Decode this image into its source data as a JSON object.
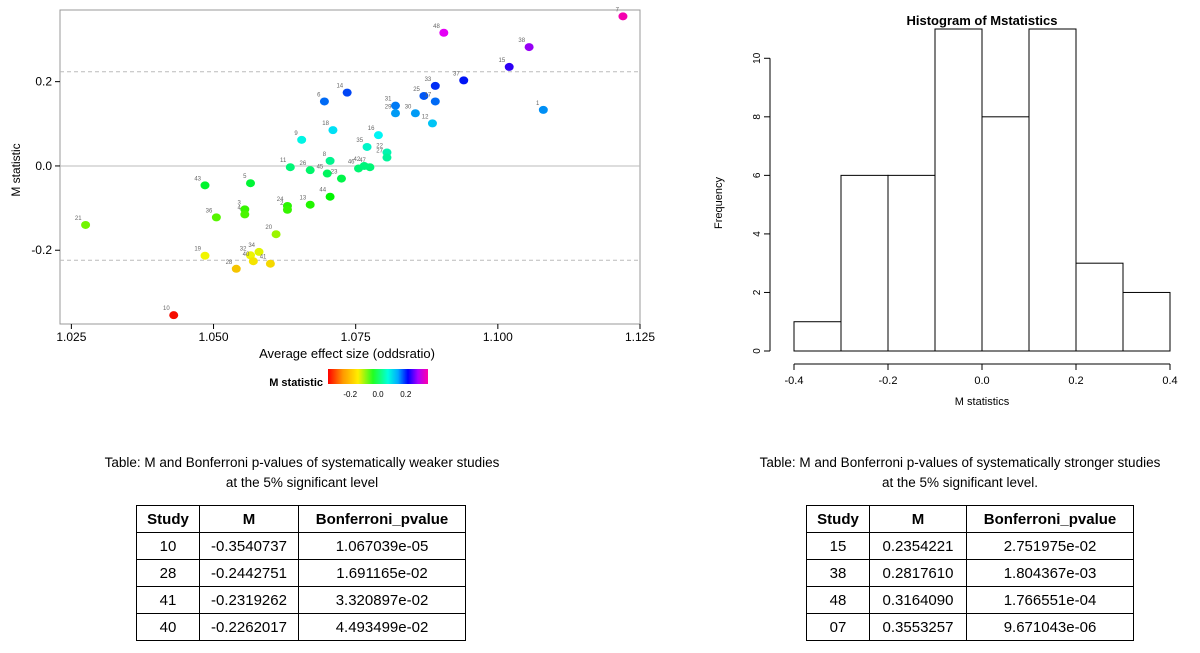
{
  "chart_data": [
    {
      "type": "scatter",
      "xlabel": "Average effect size (oddsratio)",
      "ylabel": "M statistic",
      "xlim": [
        1.023,
        1.125
      ],
      "ylim": [
        -0.375,
        0.37
      ],
      "xticks": [
        "1.025",
        "1.050",
        "1.075",
        "1.100",
        "1.125"
      ],
      "yticks": [
        "-0.2",
        "0.0",
        "0.2"
      ],
      "ytick_values": [
        -0.2,
        0.0,
        0.2
      ],
      "xtick_values": [
        1.025,
        1.05,
        1.075,
        1.1,
        1.125
      ],
      "hlines": [
        {
          "y": 0.0,
          "style": "solid"
        },
        {
          "y": 0.2236,
          "style": "dashed"
        },
        {
          "y": -0.2236,
          "style": "dashed"
        }
      ],
      "colorbar": {
        "title": "M statistic",
        "ticks": [
          "-0.2",
          "0.0",
          "0.2"
        ],
        "tick_values": [
          -0.2,
          0.0,
          0.2
        ],
        "range": [
          -0.36,
          0.36
        ]
      },
      "points": [
        {
          "label": "7",
          "x": 1.122,
          "y": 0.355
        },
        {
          "label": "48",
          "x": 1.0905,
          "y": 0.316
        },
        {
          "label": "38",
          "x": 1.1055,
          "y": 0.282
        },
        {
          "label": "15",
          "x": 1.102,
          "y": 0.235
        },
        {
          "label": "37",
          "x": 1.094,
          "y": 0.203
        },
        {
          "label": "33",
          "x": 1.089,
          "y": 0.19
        },
        {
          "label": "1",
          "x": 1.108,
          "y": 0.133
        },
        {
          "label": "14",
          "x": 1.0735,
          "y": 0.174
        },
        {
          "label": "25",
          "x": 1.087,
          "y": 0.166
        },
        {
          "label": "6",
          "x": 1.0695,
          "y": 0.153
        },
        {
          "label": "31",
          "x": 1.082,
          "y": 0.143
        },
        {
          "label": "29",
          "x": 1.082,
          "y": 0.125
        },
        {
          "label": "30",
          "x": 1.0855,
          "y": 0.125
        },
        {
          "label": "17",
          "x": 1.089,
          "y": 0.153
        },
        {
          "label": "12",
          "x": 1.0885,
          "y": 0.101
        },
        {
          "label": "18",
          "x": 1.071,
          "y": 0.085
        },
        {
          "label": "16",
          "x": 1.079,
          "y": 0.073
        },
        {
          "label": "9",
          "x": 1.0655,
          "y": 0.062
        },
        {
          "label": "35",
          "x": 1.077,
          "y": 0.045
        },
        {
          "label": "22",
          "x": 1.0805,
          "y": 0.032
        },
        {
          "label": "27",
          "x": 1.0805,
          "y": 0.02
        },
        {
          "label": "8",
          "x": 1.0705,
          "y": 0.012
        },
        {
          "label": "11",
          "x": 1.0635,
          "y": -0.003
        },
        {
          "label": "26",
          "x": 1.067,
          "y": -0.01
        },
        {
          "label": "45",
          "x": 1.07,
          "y": -0.018
        },
        {
          "label": "46",
          "x": 1.0755,
          "y": -0.006
        },
        {
          "label": "47",
          "x": 1.0775,
          "y": -0.003
        },
        {
          "label": "42",
          "x": 1.0765,
          "y": 0.0
        },
        {
          "label": "23",
          "x": 1.0725,
          "y": -0.03
        },
        {
          "label": "43",
          "x": 1.0485,
          "y": -0.046
        },
        {
          "label": "5",
          "x": 1.0565,
          "y": -0.041
        },
        {
          "label": "44",
          "x": 1.0705,
          "y": -0.073
        },
        {
          "label": "13",
          "x": 1.067,
          "y": -0.092
        },
        {
          "label": "24",
          "x": 1.063,
          "y": -0.095
        },
        {
          "label": "2",
          "x": 1.063,
          "y": -0.104
        },
        {
          "label": "3",
          "x": 1.0555,
          "y": -0.103
        },
        {
          "label": "4",
          "x": 1.0555,
          "y": -0.115
        },
        {
          "label": "36",
          "x": 1.0505,
          "y": -0.122
        },
        {
          "label": "21",
          "x": 1.0275,
          "y": -0.14
        },
        {
          "label": "20",
          "x": 1.061,
          "y": -0.162
        },
        {
          "label": "19",
          "x": 1.0485,
          "y": -0.213
        },
        {
          "label": "34",
          "x": 1.058,
          "y": -0.204
        },
        {
          "label": "32",
          "x": 1.0565,
          "y": -0.212
        },
        {
          "label": "40",
          "x": 1.057,
          "y": -0.226
        },
        {
          "label": "41",
          "x": 1.06,
          "y": -0.232
        },
        {
          "label": "28",
          "x": 1.054,
          "y": -0.244
        },
        {
          "label": "10",
          "x": 1.043,
          "y": -0.354
        }
      ]
    },
    {
      "type": "histogram",
      "title": "Histogram of Mstatistics",
      "xlabel": "M statistics",
      "ylabel": "Frequency",
      "bins": [
        -0.4,
        -0.3,
        -0.2,
        -0.1,
        0.0,
        0.1,
        0.2,
        0.3,
        0.4
      ],
      "counts": [
        1,
        6,
        6,
        11,
        8,
        11,
        3,
        2
      ],
      "xlim": [
        -0.4,
        0.4
      ],
      "ylim": [
        0,
        11
      ],
      "xticks": [
        "-0.4",
        "-0.2",
        "0.0",
        "0.2",
        "0.4"
      ],
      "xtick_values": [
        -0.4,
        -0.2,
        0.0,
        0.2,
        0.4
      ],
      "yticks": [
        "0",
        "2",
        "4",
        "6",
        "8",
        "10"
      ],
      "ytick_values": [
        0,
        2,
        4,
        6,
        8,
        10
      ]
    }
  ],
  "weaker_table": {
    "caption_line1": "Table: M and Bonferroni p-values of systematically weaker studies",
    "caption_line2": "at the 5% significant level",
    "headers": [
      "Study",
      "M",
      "Bonferroni_pvalue"
    ],
    "rows": [
      [
        "10",
        "-0.3540737",
        "1.067039e-05"
      ],
      [
        "28",
        "-0.2442751",
        "1.691165e-02"
      ],
      [
        "41",
        "-0.2319262",
        "3.320897e-02"
      ],
      [
        "40",
        "-0.2262017",
        "4.493499e-02"
      ]
    ]
  },
  "stronger_table": {
    "caption_line1": "Table: M and Bonferroni p-values of systematically stronger studies",
    "caption_line2": "at the 5% significant level.",
    "headers": [
      "Study",
      "M",
      "Bonferroni_pvalue"
    ],
    "rows": [
      [
        "15",
        "0.2354221",
        "2.751975e-02"
      ],
      [
        "38",
        "0.2817610",
        "1.804367e-03"
      ],
      [
        "48",
        "0.3164090",
        "1.766551e-04"
      ],
      [
        "07",
        "0.3553257",
        "9.671043e-06"
      ]
    ]
  }
}
